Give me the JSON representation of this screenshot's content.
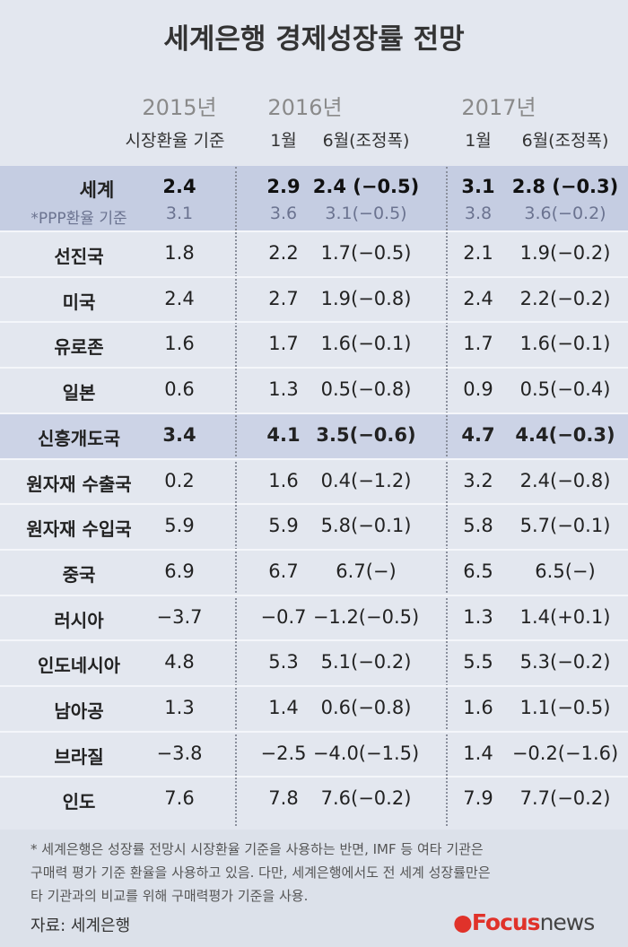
{
  "title": "세계은행 경제성장률 전망",
  "header": {
    "years": [
      "2015년",
      "2016년",
      "2017년"
    ],
    "subheaders": [
      "시장환율 기준",
      "1월",
      "6월(조정폭)",
      "1월",
      "6월(조정폭)"
    ]
  },
  "world": {
    "label": "세계",
    "values": [
      "2.4",
      "2.9",
      "2.4 (−0.5)",
      "3.1",
      "2.8 (−0.3)"
    ],
    "ppp_label": "*PPP환율 기준",
    "ppp_values": [
      "3.1",
      "3.6",
      "3.1(−0.5)",
      "3.8",
      "3.6(−0.2)"
    ]
  },
  "rows": [
    [
      "선진국",
      "1.8",
      "2.2",
      "1.7(−0.5)",
      "2.1",
      "1.9(−0.2)"
    ],
    [
      "미국",
      "2.4",
      "2.7",
      "1.9(−0.8)",
      "2.4",
      "2.2(−0.2)"
    ],
    [
      "유로존",
      "1.6",
      "1.7",
      "1.6(−0.1)",
      "1.7",
      "1.6(−0.1)"
    ],
    [
      "일본",
      "0.6",
      "1.3",
      "0.5(−0.8)",
      "0.9",
      "0.5(−0.4)"
    ],
    [
      "신흥개도국",
      "3.4",
      "4.1",
      "3.5(−0.6)",
      "4.7",
      "4.4(−0.3)"
    ],
    [
      "원자재 수출국",
      "0.2",
      "1.6",
      "0.4(−1.2)",
      "3.2",
      "2.4(−0.8)"
    ],
    [
      "원자재 수입국",
      "5.9",
      "5.9",
      "5.8(−0.1)",
      "5.8",
      "5.7(−0.1)"
    ],
    [
      "중국",
      "6.9",
      "6.7",
      "6.7(−)",
      "6.5",
      "6.5(−)"
    ],
    [
      "러시아",
      "−3.7",
      "−0.7",
      "−1.2(−0.5)",
      "1.3",
      "1.4(+0.1)"
    ],
    [
      "인도네시아",
      "4.8",
      "5.3",
      "5.1(−0.2)",
      "5.5",
      "5.3(−0.2)"
    ],
    [
      "남아공",
      "1.3",
      "1.4",
      "0.6(−0.8)",
      "1.6",
      "1.1(−0.5)"
    ],
    [
      "브라질",
      "−3.8",
      "−2.5",
      "−4.0(−1.5)",
      "1.4",
      "−0.2(−1.6)"
    ],
    [
      "인도",
      "7.6",
      "7.8",
      "7.6(−0.2)",
      "7.9",
      "7.7(−0.2)"
    ]
  ],
  "highlight_row": 4,
  "footnote": [
    "* 세계은행은 성장률 전망시 시장환율 기준을 사용하는 반면, IMF 등 여타 기관은",
    "구매력 평가 기준 환율을 사용하고 있음. 다만, 세계은행에서도 전 세계 성장률만은",
    "타 기관과의 비교를 위해 구매력평가 기준을 사용."
  ],
  "source": "자료: 세계은행",
  "logo": {
    "brand": "Focus",
    "suffix": "news"
  }
}
